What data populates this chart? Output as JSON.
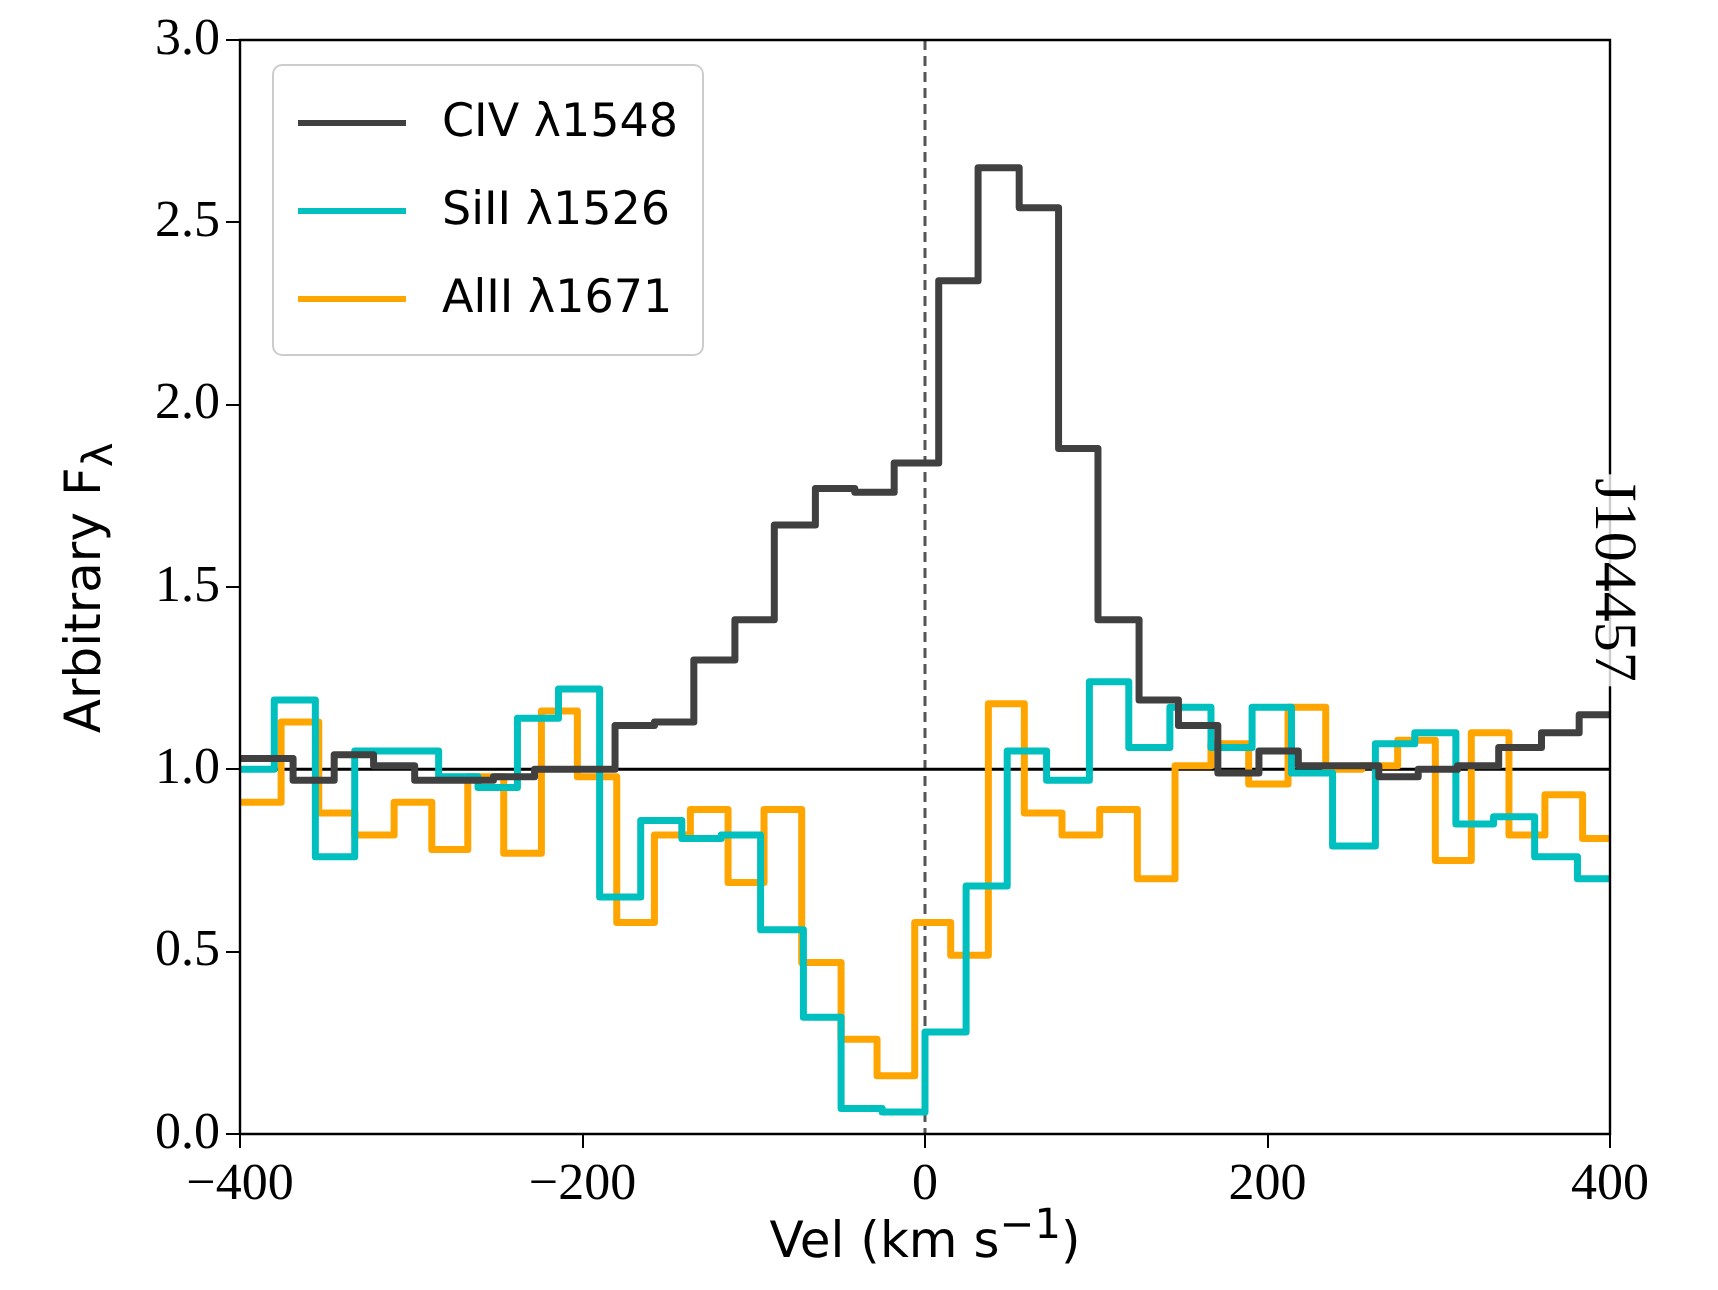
{
  "chart_data": {
    "type": "step",
    "xlabel": "Vel (km s$^{−1}$)",
    "ylabel": "Arbitrary F$_{λ}$",
    "xlim": [
      -400,
      400
    ],
    "xticks": [
      {
        "value": -400,
        "label": "−400"
      },
      {
        "value": -200,
        "label": "−200"
      },
      0,
      200,
      400
    ],
    "ylim": [
      0,
      3
    ],
    "yticks": [
      {
        "value": 0,
        "label": "0.0"
      },
      {
        "value": 0.5,
        "label": "0.5"
      },
      {
        "value": 1,
        "label": "1.0"
      },
      {
        "value": 1.5,
        "label": "1.5"
      },
      {
        "value": 2,
        "label": "2.0"
      },
      {
        "value": 2.5,
        "label": "2.5"
      },
      {
        "value": 3,
        "label": "3.0"
      }
    ],
    "grid": false,
    "legend": "top left",
    "marker": "none",
    "line_style": "solid",
    "annotations": [
      "J104457"
    ],
    "ref_lines": [
      {
        "axis": "x",
        "value": 0,
        "label": null,
        "color": "#555555",
        "line_style": "dashed"
      },
      {
        "axis": "y",
        "value": 1,
        "label": null,
        "color": "#000000",
        "line_style": "solid"
      }
    ],
    "series": [
      {
        "name": "CIV λ1548",
        "color": "#404040",
        "x": [
          -400,
          -392,
          -369,
          -345,
          -322,
          -298,
          -275,
          -252,
          -228,
          -205,
          -181,
          -158,
          -135,
          -111,
          -88,
          -64,
          -41,
          -18,
          8,
          31,
          55,
          78,
          101,
          125,
          148,
          171,
          195,
          218,
          241,
          265,
          288,
          311,
          335,
          360,
          382,
          400
        ],
        "values": [
          1.03,
          1.03,
          0.97,
          1.04,
          1.01,
          0.97,
          0.97,
          0.98,
          1.0,
          1.0,
          1.12,
          1.13,
          1.3,
          1.41,
          1.67,
          1.77,
          1.76,
          1.84,
          2.34,
          2.65,
          2.54,
          1.88,
          1.41,
          1.19,
          1.12,
          0.99,
          1.05,
          1.01,
          1.01,
          0.98,
          1.0,
          1.01,
          1.06,
          1.1,
          1.15,
          1.15
        ]
      },
      {
        "name": "SiII λ1526",
        "color": "#00bfbf",
        "x": [
          -400,
          -380,
          -356,
          -333,
          -309,
          -284,
          -261,
          -238,
          -214,
          -190,
          -166,
          -142,
          -119,
          -96,
          -71,
          -49,
          -25,
          0,
          24,
          48,
          71,
          96,
          119,
          143,
          167,
          191,
          214,
          238,
          263,
          286,
          310,
          332,
          356,
          381,
          400
        ],
        "values": [
          1.0,
          1.19,
          0.76,
          1.05,
          1.05,
          0.98,
          0.95,
          1.14,
          1.22,
          0.65,
          0.86,
          0.81,
          0.82,
          0.56,
          0.32,
          0.07,
          0.06,
          0.28,
          0.68,
          1.05,
          0.97,
          1.24,
          1.06,
          1.17,
          1.06,
          1.17,
          0.99,
          0.79,
          1.07,
          1.1,
          0.85,
          0.87,
          0.76,
          0.7,
          0.7
        ]
      },
      {
        "name": "AlII λ1671",
        "color": "#ffa500",
        "x": [
          -400,
          -376,
          -354,
          -333,
          -310,
          -288,
          -267,
          -246,
          -224,
          -203,
          -180,
          -158,
          -137,
          -115,
          -94,
          -72,
          -49,
          -28,
          -6,
          15,
          37,
          58,
          80,
          102,
          124,
          146,
          167,
          189,
          212,
          234,
          255,
          276,
          298,
          319,
          341,
          362,
          384,
          400
        ],
        "values": [
          0.91,
          1.13,
          0.88,
          0.82,
          0.91,
          0.78,
          0.98,
          0.77,
          1.16,
          0.98,
          0.58,
          0.82,
          0.89,
          0.69,
          0.89,
          0.47,
          0.26,
          0.16,
          0.58,
          0.49,
          1.18,
          0.88,
          0.82,
          0.89,
          0.7,
          1.01,
          1.07,
          0.96,
          1.17,
          1.0,
          1.01,
          1.08,
          0.75,
          1.1,
          0.82,
          0.93,
          0.81,
          0.81
        ]
      }
    ]
  }
}
